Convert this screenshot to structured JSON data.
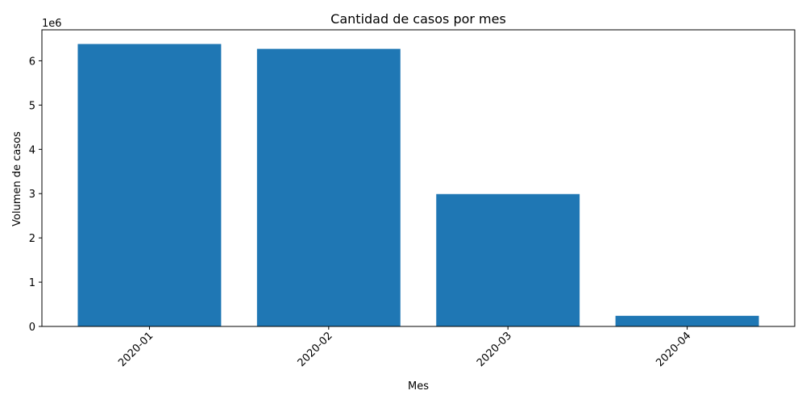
{
  "chart_data": {
    "type": "bar",
    "title": "Cantidad de casos por mes",
    "xlabel": "Mes",
    "ylabel": "Volumen de casos",
    "scale_label": "1e6",
    "categories": [
      "2020-01",
      "2020-02",
      "2020-03",
      "2020-04"
    ],
    "values": [
      6380000,
      6270000,
      2990000,
      240000
    ],
    "ylim": [
      0,
      6700000
    ],
    "yticks": [
      0,
      1000000,
      2000000,
      3000000,
      4000000,
      5000000,
      6000000
    ],
    "ytick_labels": [
      "0",
      "1",
      "2",
      "3",
      "4",
      "5",
      "6"
    ],
    "xtick_rotation": "45 degrees",
    "bar_color": "#1f77b4",
    "grid": false,
    "legend": "none"
  }
}
